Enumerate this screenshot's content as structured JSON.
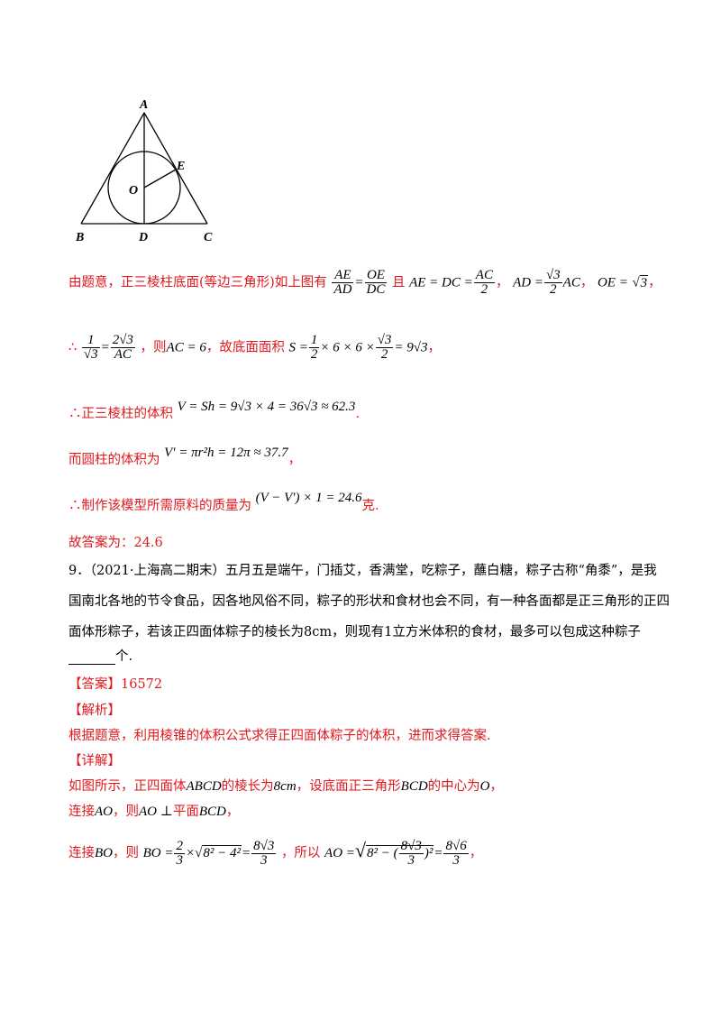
{
  "figure": {
    "labels": {
      "A": "A",
      "B": "B",
      "C": "C",
      "D": "D",
      "E": "E",
      "O": "O"
    }
  },
  "l1": {
    "text1": "由题意，正三棱柱底面(等边三角形)如上图有",
    "f1n": "AE",
    "f1d": "AD",
    "eq1": "=",
    "f2n": "OE",
    "f2d": "DC",
    "text2": "且",
    "e2a": "AE = DC =",
    "f3n": "AC",
    "f3d": "2",
    "c1": "，",
    "e3a": "AD =",
    "f4n": "√3",
    "f4d": "2",
    "e3b": "AC",
    "c2": "，",
    "e4a": "OE =",
    "e4b": "3",
    "c3": "，"
  },
  "l2": {
    "pre": "∴",
    "f1n": "1",
    "f1d": "√3",
    "eq": "=",
    "f2n": "2√3",
    "f2d": "AC",
    "t1": "，则",
    "e1": "AC = 6",
    "t2": "，故底面面积",
    "s1": "S =",
    "f3n": "1",
    "f3d": "2",
    "s2": "× 6 × 6 ×",
    "f4n": "√3",
    "f4d": "2",
    "s3": "= 9√3",
    "end": "，"
  },
  "l3": {
    "t": "∴正三棱柱的体积",
    "e": "V = Sh = 9√3 × 4 = 36√3 ≈ 62.3",
    "end": "."
  },
  "l4": {
    "t": "而圆柱的体积为",
    "e": "V' = πr²h = 12π ≈ 37.7",
    "end": "，"
  },
  "l5": {
    "t": "∴制作该模型所需原料的质量为",
    "e": "(V − V') × 1 = 24.6",
    "end": "克."
  },
  "l6": {
    "t": "故答案为：24.6"
  },
  "q9": {
    "line1": "9．（2021·上海高二期末）五月五是端午，门插艾，香满堂，吃粽子，蘸白糖，粽子古称“角黍”，是我",
    "line2": "国南北各地的节令食品，因各地风俗不同，粽子的形状和食材也会不同，有一种各面都是正三角形的正四",
    "line3": "面体形粽子，若该正四面体粽子的棱长为8cm，则现有1立方米体积的食材，最多可以包成这种粽子",
    "line4_end": "个."
  },
  "ans": {
    "t": "【答案】16572"
  },
  "jx": {
    "t": "【解析】"
  },
  "jx_body": {
    "t": "根据题意，利用棱锥的体积公式求得正四面体粽子的体积，进而求得答案."
  },
  "xj": {
    "t": "【详解】"
  },
  "d1": {
    "t1": "如图所示，正四面体",
    "m1": "ABCD",
    "t2": "的棱长为",
    "m2": "8cm",
    "t3": "，设底面正三角形",
    "m3": "BCD",
    "t4": "的中心为",
    "m4": "O",
    "end": "，"
  },
  "d2": {
    "t1": "连接",
    "m1": "AO",
    "t2": "，则",
    "m2": "AO ⊥",
    "t3": "平面",
    "m3": "BCD",
    "end": "，"
  },
  "d3": {
    "t1": "连接",
    "m1": "BO",
    "t2": "，则",
    "e1": "BO =",
    "fn": "2",
    "fd": "3",
    "e2": "×",
    "r1": "8² − 4²",
    "e3": "=",
    "f2n": "8√3",
    "f2d": "3",
    "t3": "，所以",
    "e4": "AO =",
    "r2a": "8² − (",
    "f3n": "8√3",
    "f3d": "3",
    "r2b": ")²",
    "e5": "=",
    "f4n": "8√6",
    "f4d": "3",
    "end": "，"
  }
}
